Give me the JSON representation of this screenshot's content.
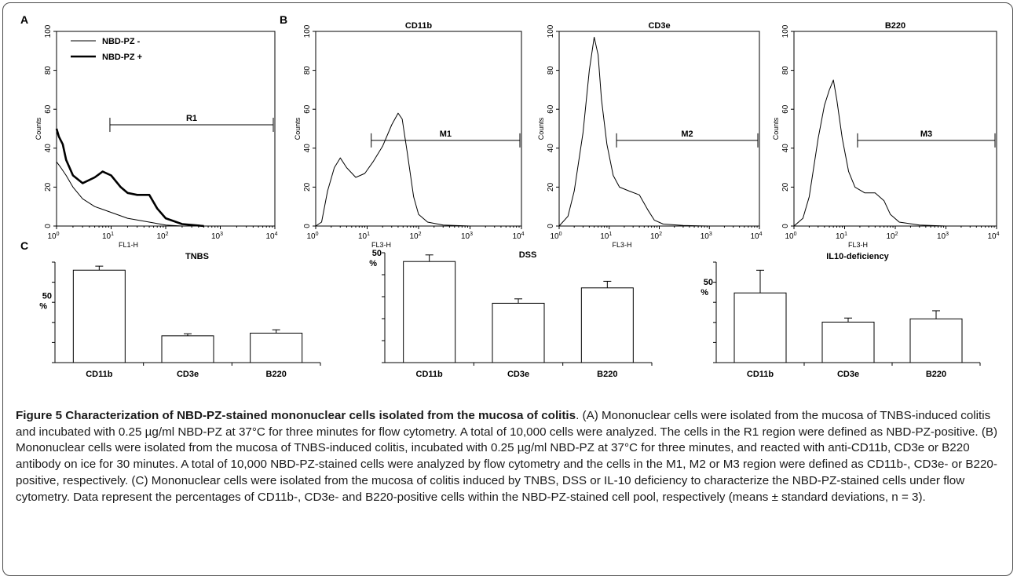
{
  "panel_letters": {
    "a": "A",
    "b": "B",
    "c": "C"
  },
  "histograms": [
    {
      "axis_label_y": "Counts",
      "axis_label_x": "FL1-H",
      "title": "",
      "yticks": [
        "0",
        "20",
        "40",
        "60",
        "80",
        "100"
      ],
      "gate": "R1",
      "gate_range": [
        9.5,
        10000
      ],
      "legend": [
        "NBD-PZ -",
        "NBD-PZ +"
      ]
    },
    {
      "axis_label_y": "Counts",
      "axis_label_x": "FL3-H",
      "title": "CD11b",
      "yticks": [
        "0",
        "20",
        "40",
        "60",
        "80",
        "100"
      ],
      "gate": "M1",
      "gate_range": [
        12,
        10000
      ]
    },
    {
      "axis_label_y": "Counts",
      "axis_label_x": "FL3-H",
      "title": "CD3e",
      "yticks": [
        "0",
        "20",
        "40",
        "60",
        "80",
        "100"
      ],
      "gate": "M2",
      "gate_range": [
        14,
        10000
      ]
    },
    {
      "axis_label_y": "Counts",
      "axis_label_x": "FL3-H",
      "title": "B220",
      "yticks": [
        "0",
        "20",
        "40",
        "60",
        "80",
        "100"
      ],
      "gate": "M3",
      "gate_range": [
        18,
        10000
      ]
    }
  ],
  "x_tick_exponents": [
    "0",
    "1",
    "2",
    "3",
    "4"
  ],
  "x_tick_base": "10",
  "chart_data": [
    {
      "type": "line",
      "title": "",
      "xlabel": "FL1-H",
      "ylabel": "Counts",
      "xscale": "log",
      "xlim": [
        1,
        10000
      ],
      "ylim": [
        0,
        100
      ],
      "series": [
        {
          "name": "NBD-PZ -",
          "x": [
            1,
            1.2,
            1.5,
            2,
            3,
            5,
            10,
            20,
            50,
            100,
            200
          ],
          "y": [
            33,
            30,
            26,
            20,
            14,
            10,
            7,
            4,
            2,
            0.5,
            0
          ]
        },
        {
          "name": "NBD-PZ +",
          "x": [
            1,
            1.1,
            1.3,
            1.5,
            2,
            3,
            5,
            7,
            10,
            15,
            20,
            30,
            50,
            70,
            100,
            200,
            500
          ],
          "y": [
            50,
            46,
            42,
            34,
            26,
            22,
            25,
            28,
            26,
            20,
            17,
            16,
            16,
            9,
            4,
            1,
            0
          ]
        }
      ]
    },
    {
      "type": "line",
      "title": "CD11b",
      "xlabel": "FL3-H",
      "ylabel": "Counts",
      "xscale": "log",
      "xlim": [
        1,
        10000
      ],
      "ylim": [
        0,
        100
      ],
      "series": [
        {
          "x": [
            1,
            1.3,
            1.7,
            2.3,
            3,
            4,
            6,
            9,
            13,
            20,
            30,
            40,
            48,
            60,
            80,
            100,
            150,
            300,
            1000
          ],
          "y": [
            0,
            2,
            18,
            30,
            35,
            30,
            25,
            27,
            33,
            41,
            52,
            58,
            55,
            38,
            15,
            6,
            2,
            0.5,
            0
          ]
        }
      ]
    },
    {
      "type": "line",
      "title": "CD3e",
      "xlabel": "FL3-H",
      "ylabel": "Counts",
      "xscale": "log",
      "xlim": [
        1,
        10000
      ],
      "ylim": [
        0,
        100
      ],
      "series": [
        {
          "x": [
            1,
            1.5,
            2,
            3,
            4,
            5,
            6,
            7,
            9,
            12,
            16,
            25,
            40,
            60,
            80,
            120,
            300,
            1000
          ],
          "y": [
            0,
            5,
            18,
            48,
            80,
            97,
            88,
            65,
            42,
            26,
            20,
            18,
            16,
            8,
            3,
            1,
            0.3,
            0
          ]
        }
      ]
    },
    {
      "type": "line",
      "title": "B220",
      "xlabel": "FL3-H",
      "ylabel": "Counts",
      "xscale": "log",
      "xlim": [
        1,
        10000
      ],
      "ylim": [
        0,
        100
      ],
      "series": [
        {
          "x": [
            1,
            1.5,
            2,
            3,
            4,
            5,
            6,
            7,
            9,
            12,
            16,
            25,
            40,
            60,
            80,
            120,
            300,
            1000
          ],
          "y": [
            0,
            4,
            15,
            45,
            62,
            70,
            75,
            65,
            45,
            28,
            20,
            17,
            17,
            13,
            6,
            2,
            0.5,
            0
          ]
        }
      ]
    },
    {
      "type": "bar",
      "title": "TNBS",
      "ylabel": "%",
      "ytick_label": "50",
      "categories": [
        "CD11b",
        "CD3e",
        "B220"
      ],
      "values": [
        69,
        20,
        22
      ],
      "errors": [
        3,
        1.5,
        2.5
      ]
    },
    {
      "type": "bar",
      "title": "DSS",
      "ylabel": "%",
      "ytick_label": "50",
      "categories": [
        "CD11b",
        "CD3e",
        "B220"
      ],
      "values": [
        46,
        27,
        34
      ],
      "errors": [
        3,
        2,
        3
      ]
    },
    {
      "type": "bar",
      "title": "IL10-deficiency",
      "ylabel": "%",
      "ytick_label": "50",
      "categories": [
        "CD11b",
        "CD3e",
        "B220"
      ],
      "values": [
        43,
        25,
        27
      ],
      "errors": [
        14,
        2.5,
        5
      ]
    }
  ],
  "caption": {
    "title": "Figure 5 Characterization of NBD-PZ-stained mononuclear cells isolated from the mucosa of colitis",
    "body": ". (A) Mononuclear cells were isolated from the mucosa of TNBS-induced colitis and incubated with 0.25 µg/ml NBD-PZ at 37°C for three minutes for flow cytometry. A total of 10,000 cells were analyzed. The cells in the R1 region were defined as NBD-PZ-positive. (B) Mononuclear cells were isolated from the mucosa of TNBS-induced colitis, incubated with 0.25 µg/ml NBD-PZ at 37°C for three minutes, and reacted with anti-CD11b, CD3e or B220 antibody on ice for 30 minutes. A total of 10,000 NBD-PZ-stained cells were analyzed by flow cytometry and the cells in the M1, M2 or M3 region were defined as CD11b-, CD3e- or B220-positive, respectively. (C) Mononuclear cells were isolated from the mucosa of colitis induced by TNBS, DSS or IL-10 deficiency to characterize the NBD-PZ-stained cells under flow cytometry. Data represent the percentages of CD11b-, CD3e- and B220-positive cells within the NBD-PZ-stained cell pool, respectively (means ± standard deviations, n = 3)."
  }
}
